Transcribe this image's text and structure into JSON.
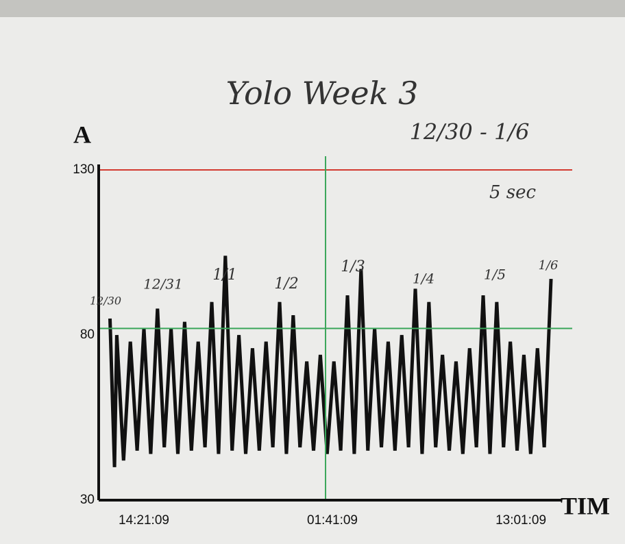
{
  "chart_data": {
    "type": "line",
    "title": "Yolo Week 3",
    "subtitle": "12/30 - 1/6",
    "annotations": [
      "5 sec",
      "12/30",
      "12/31",
      "1/1",
      "1/2",
      "1/3",
      "1/4",
      "1/5",
      "1/6"
    ],
    "y_label": "A",
    "x_label": "TIM",
    "x": [
      -15,
      -13,
      -12,
      -9,
      -6,
      -3,
      0,
      3,
      6,
      9,
      12,
      15,
      18,
      21,
      24,
      27,
      30,
      33,
      36,
      39,
      42,
      45,
      48,
      51,
      54,
      57,
      60,
      63,
      66,
      69,
      72,
      75,
      78,
      81,
      84,
      87,
      90,
      93,
      96,
      99,
      102,
      105,
      108,
      111,
      114,
      117,
      120,
      123,
      126,
      129,
      132,
      135,
      138,
      141,
      144,
      147,
      150,
      153,
      156,
      159,
      162,
      165,
      168,
      171,
      174,
      177,
      180
    ],
    "series": [
      {
        "color": "#111111",
        "values": [
          85,
          40,
          80,
          42,
          78,
          45,
          82,
          44,
          88,
          46,
          82,
          44,
          84,
          45,
          78,
          46,
          90,
          44,
          104,
          45,
          80,
          44,
          76,
          45,
          78,
          46,
          90,
          44,
          86,
          46,
          72,
          45,
          74,
          44,
          72,
          45,
          92,
          44,
          100,
          45,
          82,
          46,
          78,
          45,
          80,
          46,
          94,
          44,
          90,
          46,
          74,
          45,
          72,
          44,
          76,
          46,
          92,
          44,
          90,
          46,
          78,
          45,
          74,
          44,
          76,
          46,
          97
        ]
      }
    ],
    "reference_lines": [
      {
        "axis": "y",
        "value": 130,
        "color": "#d23a2f"
      },
      {
        "axis": "y",
        "value": 82,
        "color": "#3aa65a"
      },
      {
        "axis": "x",
        "value": 80.3,
        "color": "#3aa65a"
      }
    ],
    "xlim": [
      -20,
      181.8
    ],
    "xticks": [
      {
        "value": 0,
        "label": "14:21:09"
      },
      {
        "value": 83.33,
        "label": "01:41:09"
      },
      {
        "value": 166.67,
        "label": "13:01:09"
      }
    ],
    "ylim": [
      30,
      130
    ],
    "yticks": [
      30,
      80,
      130
    ],
    "grid": false
  }
}
